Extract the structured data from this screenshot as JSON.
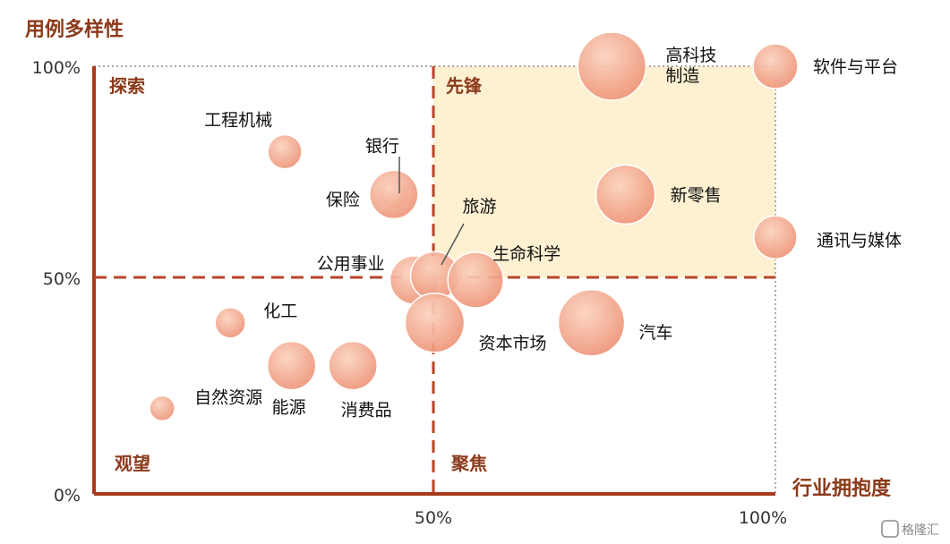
{
  "chart_data": {
    "type": "scatter",
    "title": "",
    "xlabel": "行业拥抱度",
    "ylabel": "用例多样性",
    "xlim": [
      0,
      100
    ],
    "ylim": [
      0,
      100
    ],
    "x_ticks": [
      "50%",
      "100%"
    ],
    "y_ticks": [
      "0%",
      "50%",
      "100%"
    ],
    "quadrants": [
      "探索",
      "先锋",
      "观望",
      "聚焦"
    ],
    "bubbles": [
      {
        "label": "高科技制造",
        "label_lines": [
          "高科技",
          "制造"
        ],
        "x": 76,
        "y": 100,
        "r": 38
      },
      {
        "label": "软件与平台",
        "x": 100,
        "y": 100,
        "r": 25
      },
      {
        "label": "新零售",
        "x": 78,
        "y": 70,
        "r": 33
      },
      {
        "label": "通讯与媒体",
        "x": 100,
        "y": 60,
        "r": 24
      },
      {
        "label": "工程机械",
        "x": 28,
        "y": 80,
        "r": 19
      },
      {
        "label": "银行",
        "x": 44,
        "y": 70,
        "r": 16
      },
      {
        "label": "保险",
        "x": 44,
        "y": 70,
        "r": 27
      },
      {
        "label": "公用事业",
        "x": 47,
        "y": 50,
        "r": 27
      },
      {
        "label": "旅游",
        "x": 50,
        "y": 51,
        "r": 27
      },
      {
        "label": "生命科学",
        "x": 56,
        "y": 50,
        "r": 31
      },
      {
        "label": "资本市场",
        "x": 50,
        "y": 40,
        "r": 33
      },
      {
        "label": "汽车",
        "x": 73,
        "y": 40,
        "r": 37
      },
      {
        "label": "化工",
        "x": 20,
        "y": 40,
        "r": 17
      },
      {
        "label": "能源",
        "x": 29,
        "y": 30,
        "r": 27
      },
      {
        "label": "消费品",
        "x": 38,
        "y": 30,
        "r": 27
      },
      {
        "label": "自然资源",
        "x": 10,
        "y": 20,
        "r": 14
      }
    ],
    "watermark": "格隆汇"
  }
}
